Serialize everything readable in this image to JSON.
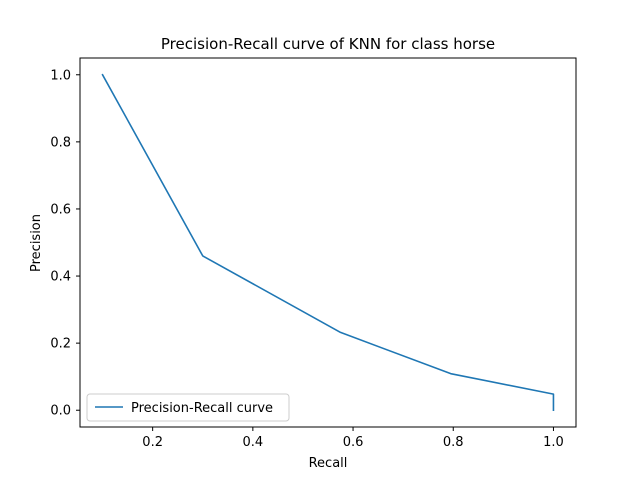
{
  "chart_data": {
    "type": "line",
    "title": "Precision-Recall curve of KNN for class horse",
    "xlabel": "Recall",
    "ylabel": "Precision",
    "xlim": [
      0.055,
      1.045
    ],
    "ylim": [
      -0.05,
      1.05
    ],
    "xticks": [
      0.2,
      0.4,
      0.6,
      0.8,
      1.0
    ],
    "xtick_labels": [
      "0.2",
      "0.4",
      "0.6",
      "0.8",
      "1.0"
    ],
    "yticks": [
      0.0,
      0.2,
      0.4,
      0.6,
      0.8,
      1.0
    ],
    "ytick_labels": [
      "0.0",
      "0.2",
      "0.4",
      "0.6",
      "0.8",
      "1.0"
    ],
    "grid": false,
    "legend_position": "lower-left",
    "series": [
      {
        "name": "Precision-Recall curve",
        "color": "#1f77b4",
        "x": [
          0.1,
          0.3,
          0.575,
          0.795,
          1.0,
          1.0
        ],
        "y": [
          1.0,
          0.46,
          0.232,
          0.109,
          0.048,
          0.0
        ]
      }
    ]
  }
}
